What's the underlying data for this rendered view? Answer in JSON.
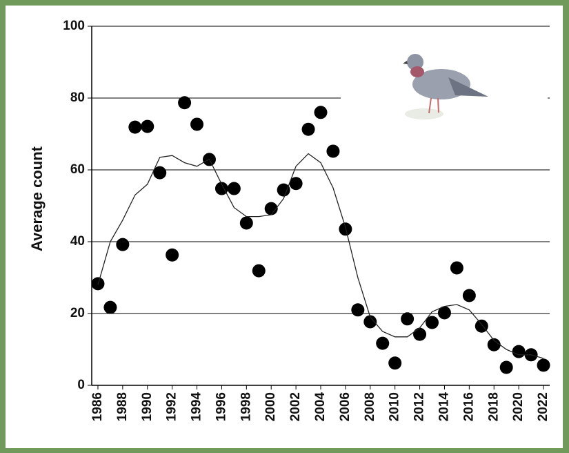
{
  "chart_data": {
    "type": "scatter",
    "y_label": "Average count",
    "x": [
      1986,
      1987,
      1988,
      1989,
      1990,
      1991,
      1992,
      1993,
      1994,
      1995,
      1996,
      1997,
      1998,
      1999,
      2000,
      2001,
      2002,
      2003,
      2004,
      2005,
      2006,
      2007,
      2008,
      2009,
      2010,
      2011,
      2012,
      2013,
      2014,
      2015,
      2016,
      2017,
      2018,
      2019,
      2020,
      2021,
      2022
    ],
    "series": [
      {
        "style": "points",
        "color": "#000000",
        "values": [
          28.3,
          21.7,
          39.2,
          71.9,
          72.1,
          59.2,
          36.3,
          78.7,
          72.7,
          62.9,
          54.8,
          54.8,
          45.2,
          31.9,
          49.2,
          54.4,
          56.2,
          71.3,
          76.0,
          65.2,
          43.5,
          21.0,
          17.7,
          11.7,
          6.2,
          18.5,
          14.2,
          17.5,
          20.2,
          32.7,
          25.0,
          16.5,
          11.3,
          5.0,
          9.4,
          8.5,
          5.6
        ]
      },
      {
        "style": "line",
        "color": "#222222",
        "values": [
          28,
          40,
          46,
          53,
          56,
          63.5,
          64,
          62,
          61,
          63,
          56,
          49.5,
          47,
          47,
          47.5,
          52,
          61,
          64.5,
          62,
          55,
          44,
          30,
          19,
          15,
          13.5,
          13.5,
          16,
          20.5,
          22,
          22.5,
          21,
          17,
          12.5,
          10,
          8.5,
          8.5,
          7.5
        ]
      }
    ],
    "xlim": [
      1985.5,
      2022.5
    ],
    "xticks": [
      1986,
      1988,
      1990,
      1992,
      1994,
      1996,
      1998,
      2000,
      2002,
      2004,
      2006,
      2008,
      2010,
      2012,
      2014,
      2016,
      2018,
      2020,
      2022
    ],
    "ylim": [
      0,
      100
    ],
    "yticks": [
      0,
      20,
      40,
      60,
      80,
      100
    ],
    "grid": true
  }
}
